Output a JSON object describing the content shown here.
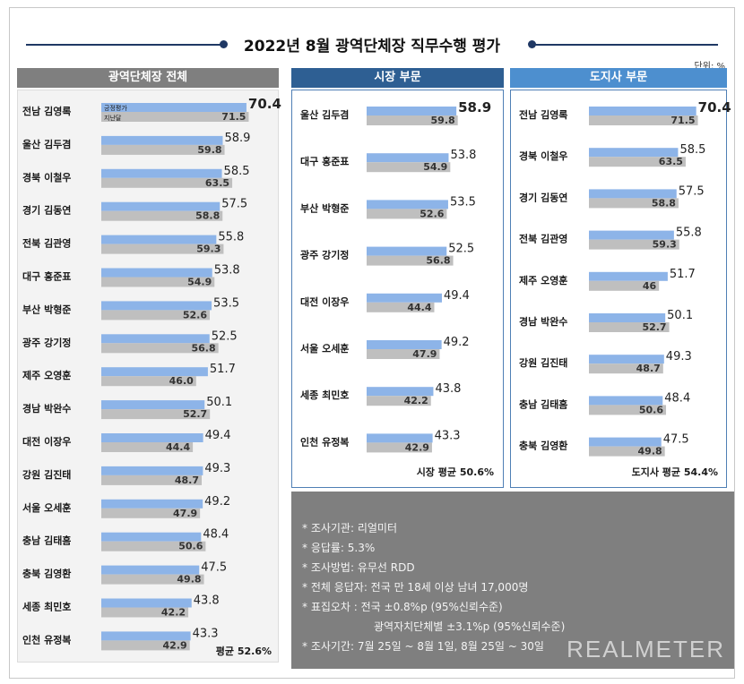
{
  "title": "2022년 8월 광역단체장 직무수행 평가",
  "unit_label": "단위: %",
  "colors": {
    "current": "#8db4e8",
    "previous": "#bfbfbf",
    "header_left": "#7f7f7f",
    "header_mid": "#2e5f93",
    "header_right": "#4d8fcf"
  },
  "legend": {
    "current": "긍정평가",
    "previous": "지난달"
  },
  "chart_data": [
    {
      "type": "bar",
      "title": "광역단체장 전체",
      "categories": [
        "전남 김영록",
        "울산 김두겸",
        "경북 이철우",
        "경기 김동연",
        "전북 김관영",
        "대구 홍준표",
        "부산 박형준",
        "광주 강기정",
        "제주 오영훈",
        "경남 박완수",
        "대전 이장우",
        "강원 김진태",
        "서울 오세훈",
        "충남 김태흠",
        "충북 김영환",
        "세종 최민호",
        "인천 유정복"
      ],
      "series": [
        {
          "name": "긍정평가",
          "values": [
            70.4,
            58.9,
            58.5,
            57.5,
            55.8,
            53.8,
            53.5,
            52.5,
            51.7,
            50.1,
            49.4,
            49.3,
            49.2,
            48.4,
            47.5,
            43.8,
            43.3
          ]
        },
        {
          "name": "지난달",
          "values": [
            71.5,
            59.8,
            63.5,
            58.8,
            59.3,
            54.9,
            52.6,
            56.8,
            46.0,
            52.7,
            44.4,
            48.7,
            47.9,
            50.6,
            49.8,
            42.2,
            42.9
          ]
        }
      ],
      "value_labels": {
        "current": [
          "70.4",
          "58.9",
          "58.5",
          "57.5",
          "55.8",
          "53.8",
          "53.5",
          "52.5",
          "51.7",
          "50.1",
          "49.4",
          "49.3",
          "49.2",
          "48.4",
          "47.5",
          "43.8",
          "43.3"
        ],
        "previous": [
          "71.5",
          "59.8",
          "63.5",
          "58.8",
          "59.3",
          "54.9",
          "52.6",
          "56.8",
          "46.0",
          "52.7",
          "44.4",
          "48.7",
          "47.9",
          "50.6",
          "49.8",
          "42.2",
          "42.9"
        ]
      },
      "average_label": "평균 52.6%"
    },
    {
      "type": "bar",
      "title": "시장 부문",
      "categories": [
        "울산 김두겸",
        "대구 홍준표",
        "부산 박형준",
        "광주 강기정",
        "대전 이장우",
        "서울 오세훈",
        "세종 최민호",
        "인천 유정복"
      ],
      "series": [
        {
          "name": "긍정평가",
          "values": [
            58.9,
            53.8,
            53.5,
            52.5,
            49.4,
            49.2,
            43.8,
            43.3
          ]
        },
        {
          "name": "지난달",
          "values": [
            59.8,
            54.9,
            52.6,
            56.8,
            44.4,
            47.9,
            42.2,
            42.9
          ]
        }
      ],
      "value_labels": {
        "current": [
          "58.9",
          "53.8",
          "53.5",
          "52.5",
          "49.4",
          "49.2",
          "43.8",
          "43.3"
        ],
        "previous": [
          "59.8",
          "54.9",
          "52.6",
          "56.8",
          "44.4",
          "47.9",
          "42.2",
          "42.9"
        ]
      },
      "average_label": "시장 평균 50.6%"
    },
    {
      "type": "bar",
      "title": "도지사 부문",
      "categories": [
        "전남 김영록",
        "경북 이철우",
        "경기 김동연",
        "전북 김관영",
        "제주 오영훈",
        "경남 박완수",
        "강원 김진태",
        "충남 김태흠",
        "충북 김영환"
      ],
      "series": [
        {
          "name": "긍정평가",
          "values": [
            70.4,
            58.5,
            57.5,
            55.8,
            51.7,
            50.1,
            49.3,
            48.4,
            47.5
          ]
        },
        {
          "name": "지난달",
          "values": [
            71.5,
            63.5,
            58.8,
            59.3,
            46,
            52.7,
            48.7,
            50.6,
            49.8
          ]
        }
      ],
      "value_labels": {
        "current": [
          "70.4",
          "58.5",
          "57.5",
          "55.8",
          "51.7",
          "50.1",
          "49.3",
          "48.4",
          "47.5"
        ],
        "previous": [
          "71.5",
          "63.5",
          "58.8",
          "59.3",
          "46",
          "52.7",
          "48.7",
          "50.6",
          "49.8"
        ]
      },
      "average_label": "도지사 평균 54.4%"
    }
  ],
  "survey_info": [
    "* 조사기관: 리얼미터",
    "* 응답률: 5.3%",
    "* 조사방법: 유무선 RDD",
    "* 전체 응답자: 전국 만 18세 이상 남녀 17,000명",
    "* 표집오차 : 전국 ±0.8%p (95%신뢰수준)",
    "광역자치단체별 ±3.1%p (95%신뢰수준)",
    "* 조사기간: 7월 25일 ~ 8월 1일, 8월 25일 ~ 30일"
  ],
  "brand": "REALMETER"
}
